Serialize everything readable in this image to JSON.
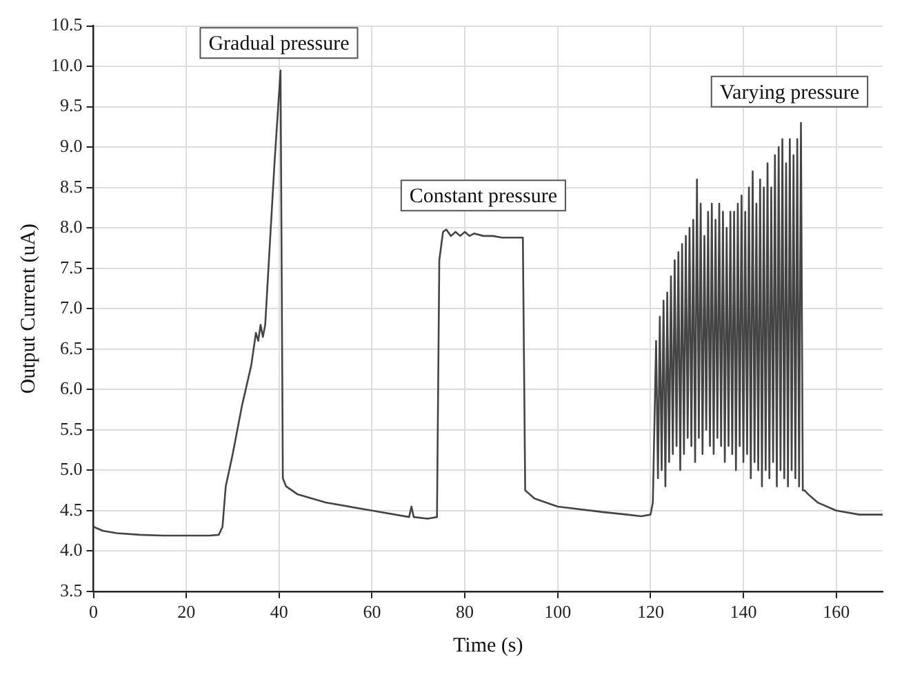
{
  "chart_data": {
    "type": "line",
    "xlabel": "Time (s)",
    "ylabel": "Output Current (uA)",
    "xlim": [
      0,
      170
    ],
    "xticks": [
      0,
      20,
      40,
      60,
      80,
      100,
      120,
      140,
      160
    ],
    "ylim": [
      3.5,
      10.5
    ],
    "yticks": [
      {
        "value": 3.5,
        "label": "3.5"
      },
      {
        "value": 4,
        "label": "4.0"
      },
      {
        "value": 4.5,
        "label": "4.5"
      },
      {
        "value": 5,
        "label": "5.0"
      },
      {
        "value": 5.5,
        "label": "5.5"
      },
      {
        "value": 6,
        "label": "6.0"
      },
      {
        "value": 6.5,
        "label": "6.5"
      },
      {
        "value": 7,
        "label": "7.0"
      },
      {
        "value": 7.5,
        "label": "7.5"
      },
      {
        "value": 8,
        "label": "8.0"
      },
      {
        "value": 8.5,
        "label": "8.5"
      },
      {
        "value": 9,
        "label": "9.0"
      },
      {
        "value": 9.5,
        "label": "9.5"
      },
      {
        "value": 10,
        "label": "10.0"
      },
      {
        "value": 10.5,
        "label": "10.5"
      }
    ],
    "grid": true,
    "legend": false,
    "marker": "none",
    "line_style": "solid",
    "annotations": [
      "Gradual pressure",
      "Constant pressure",
      "Varying pressure"
    ],
    "series": [
      {
        "color": "#444444",
        "x": [
          0,
          2,
          5,
          10,
          15,
          20,
          25,
          27,
          27.8,
          28.5,
          30,
          32,
          34,
          35,
          35.5,
          36,
          36.5,
          37,
          38,
          39,
          40.3,
          40.8,
          41.5,
          44,
          50,
          60,
          68,
          68.5,
          69,
          72,
          74,
          74.5,
          75.3,
          76,
          77,
          78,
          79,
          80,
          81,
          82,
          84,
          86,
          88,
          90,
          92.5,
          93,
          95,
          100,
          110,
          115,
          118,
          120,
          120.5,
          121.2,
          121.6,
          122.0,
          122.4,
          122.8,
          123.2,
          123.6,
          124.0,
          124.4,
          124.8,
          125.2,
          125.6,
          126.0,
          126.4,
          126.8,
          127.2,
          127.6,
          128.0,
          128.4,
          128.8,
          129.2,
          129.6,
          130.0,
          130.4,
          130.8,
          131.2,
          131.6,
          132.0,
          132.4,
          132.8,
          133.2,
          133.6,
          134.0,
          134.4,
          134.8,
          135.2,
          135.6,
          136.0,
          136.4,
          136.8,
          137.2,
          137.6,
          138.0,
          138.4,
          138.8,
          139.2,
          139.6,
          140.0,
          140.4,
          140.8,
          141.2,
          141.6,
          142.0,
          142.4,
          142.8,
          143.2,
          143.6,
          144.0,
          144.4,
          144.8,
          145.2,
          145.6,
          146.0,
          146.4,
          146.8,
          147.2,
          147.6,
          148.0,
          148.4,
          148.8,
          149.2,
          149.6,
          150.0,
          150.4,
          150.8,
          151.2,
          151.6,
          152.0,
          152.4,
          152.8,
          153.2,
          154,
          156,
          160,
          165,
          170
        ],
        "values": [
          4.3,
          4.25,
          4.22,
          4.2,
          4.19,
          4.19,
          4.19,
          4.2,
          4.3,
          4.8,
          5.2,
          5.8,
          6.3,
          6.7,
          6.6,
          6.8,
          6.65,
          6.8,
          7.8,
          8.8,
          9.95,
          4.9,
          4.8,
          4.7,
          4.6,
          4.5,
          4.42,
          4.55,
          4.42,
          4.4,
          4.42,
          7.6,
          7.95,
          7.98,
          7.9,
          7.95,
          7.9,
          7.95,
          7.9,
          7.93,
          7.9,
          7.9,
          7.88,
          7.88,
          7.88,
          4.75,
          4.65,
          4.55,
          4.48,
          4.45,
          4.43,
          4.45,
          4.6,
          6.6,
          4.9,
          6.9,
          5.0,
          7.1,
          4.8,
          7.2,
          5.1,
          7.4,
          5.2,
          7.6,
          5.3,
          7.7,
          5.0,
          7.8,
          5.2,
          7.9,
          5.4,
          8.0,
          5.3,
          8.1,
          5.1,
          8.6,
          5.4,
          8.3,
          5.2,
          7.9,
          5.5,
          8.2,
          5.3,
          8.3,
          5.2,
          8.1,
          5.4,
          8.3,
          5.3,
          8.2,
          5.1,
          8.0,
          5.3,
          8.2,
          5.2,
          8.2,
          5.0,
          8.3,
          5.3,
          8.4,
          5.1,
          8.2,
          5.2,
          8.5,
          4.9,
          8.7,
          5.1,
          8.3,
          5.0,
          8.6,
          4.8,
          8.5,
          5.0,
          8.8,
          4.9,
          8.5,
          5.1,
          8.9,
          4.8,
          9.0,
          5.0,
          9.1,
          4.9,
          8.8,
          4.8,
          9.1,
          5.0,
          8.9,
          4.9,
          9.1,
          4.8,
          9.3,
          4.75,
          4.75,
          4.7,
          4.6,
          4.5,
          4.45,
          4.45
        ]
      }
    ]
  }
}
